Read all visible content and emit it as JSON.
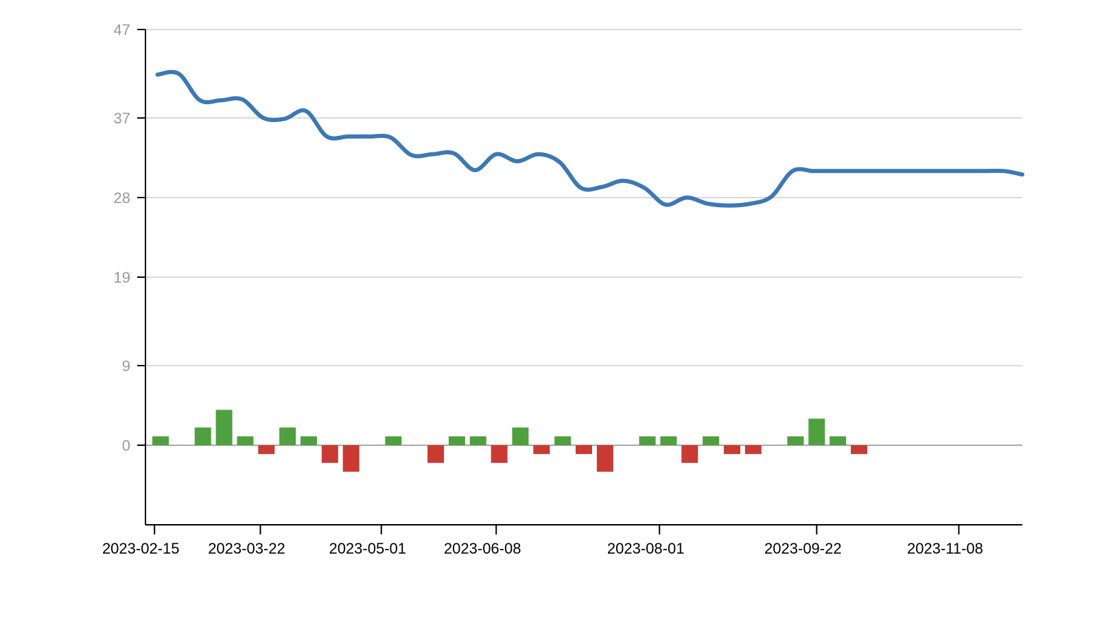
{
  "chart_data": {
    "type": "line+bar",
    "title": "",
    "xlabel": "",
    "ylabel": "",
    "ylim": [
      -9,
      47
    ],
    "yticks": [
      0,
      9,
      19,
      28,
      37,
      47
    ],
    "xlim": [
      "2023-02-12",
      "2023-11-29"
    ],
    "xticks": [
      "2023-02-15",
      "2023-03-22",
      "2023-05-01",
      "2023-06-08",
      "2023-08-01",
      "2023-09-22",
      "2023-11-08"
    ],
    "grid": true,
    "colors": {
      "line": "#3d78b4",
      "bar_positive": "#4fa03f",
      "bar_negative": "#c83a32",
      "grid": "#d9d9d9",
      "zero_line": "#aaaaaa",
      "axis": "#000000"
    },
    "line_series": {
      "x": [
        "2023-02-16",
        "2023-02-23",
        "2023-03-02",
        "2023-03-09",
        "2023-03-16",
        "2023-03-23",
        "2023-03-30",
        "2023-04-06",
        "2023-04-13",
        "2023-04-20",
        "2023-04-27",
        "2023-05-04",
        "2023-05-11",
        "2023-05-18",
        "2023-05-25",
        "2023-06-01",
        "2023-06-08",
        "2023-06-15",
        "2023-06-22",
        "2023-06-29",
        "2023-07-06",
        "2023-07-13",
        "2023-07-20",
        "2023-07-27",
        "2023-08-03",
        "2023-08-10",
        "2023-08-17",
        "2023-08-24",
        "2023-08-31",
        "2023-09-07",
        "2023-09-14",
        "2023-09-21",
        "2023-09-28",
        "2023-10-05",
        "2023-10-12",
        "2023-10-19",
        "2023-10-26",
        "2023-11-02",
        "2023-11-09",
        "2023-11-16",
        "2023-11-23",
        "2023-11-29"
      ],
      "y": [
        41.9,
        42.0,
        39.0,
        39.0,
        39.1,
        37.0,
        36.9,
        37.8,
        34.9,
        34.9,
        34.9,
        34.8,
        32.8,
        32.9,
        33.0,
        31.1,
        32.9,
        32.1,
        32.9,
        32.0,
        29.1,
        29.2,
        29.9,
        29.1,
        27.2,
        28.0,
        27.3,
        27.1,
        27.3,
        28.1,
        31.0,
        31.0,
        31.0,
        31.0,
        31.0,
        31.0,
        31.0,
        31.0,
        31.0,
        31.0,
        31.0,
        30.6
      ]
    },
    "bar_series": {
      "x": [
        "2023-02-17",
        "2023-03-03",
        "2023-03-10",
        "2023-03-17",
        "2023-03-24",
        "2023-03-31",
        "2023-04-07",
        "2023-04-14",
        "2023-04-21",
        "2023-05-05",
        "2023-05-19",
        "2023-05-26",
        "2023-06-02",
        "2023-06-09",
        "2023-06-16",
        "2023-06-23",
        "2023-06-30",
        "2023-07-07",
        "2023-07-14",
        "2023-07-28",
        "2023-08-04",
        "2023-08-11",
        "2023-08-18",
        "2023-08-25",
        "2023-09-01",
        "2023-09-15",
        "2023-09-22",
        "2023-09-29",
        "2023-10-06"
      ],
      "values": [
        1,
        2,
        4,
        1,
        -1,
        2,
        1,
        -2,
        -3,
        1,
        -2,
        1,
        1,
        -2,
        2,
        -1,
        1,
        -1,
        -3,
        1,
        1,
        -2,
        1,
        -1,
        -1,
        1,
        3,
        1,
        -1
      ]
    }
  }
}
